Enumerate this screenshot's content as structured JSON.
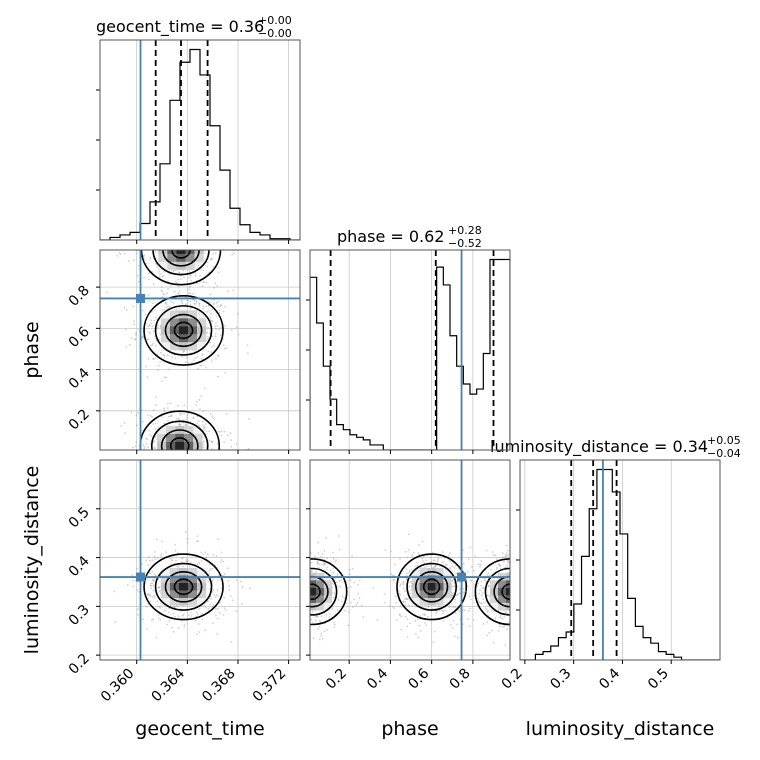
{
  "chart_data": {
    "type": "corner",
    "parameters": [
      "geocent_time",
      "phase",
      "luminosity_distance"
    ],
    "truths": {
      "geocent_time": 0.3603,
      "phase": 0.745,
      "luminosity_distance": 0.36
    },
    "colors": {
      "truth": "#4682b4",
      "hist": "#000000",
      "grid": "#c8c8c8",
      "points": "#9a9a9a"
    },
    "titles": [
      {
        "param": "geocent_time",
        "label": "geocent_time = 0.36",
        "plus": "+0.00",
        "minus": "−0.00"
      },
      {
        "param": "phase",
        "label": "phase = 0.62",
        "plus": "+0.28",
        "minus": "−0.52"
      },
      {
        "param": "luminosity_distance",
        "label": "luminosity_distance = 0.34",
        "plus": "+0.05",
        "minus": "−0.04"
      }
    ],
    "axis_labels": {
      "geocent_time": "geocent_time",
      "phase": "phase",
      "luminosity_distance": "luminosity_distance"
    },
    "ranges": {
      "geocent_time": [
        0.3571,
        0.3729
      ],
      "phase": [
        0.01,
        0.98
      ],
      "luminosity_distance": [
        0.19,
        0.6
      ]
    },
    "ticks": {
      "geocent_time": [
        0.36,
        0.364,
        0.368,
        0.372
      ],
      "phase": [
        0.2,
        0.4,
        0.6,
        0.8
      ],
      "luminosity_distance": [
        0.2,
        0.3,
        0.4,
        0.5
      ]
    },
    "tick_labels": {
      "geocent_time": [
        "0.360",
        "0.364",
        "0.368",
        "0.372"
      ],
      "phase": [
        "0.2",
        "0.4",
        "0.6",
        "0.8"
      ],
      "luminosity_distance": [
        "0.2",
        "0.3",
        "0.4",
        "0.5"
      ]
    },
    "quantiles": {
      "geocent_time": [
        0.3615,
        0.3635,
        0.3656
      ],
      "phase": [
        0.11,
        0.62,
        0.9
      ],
      "luminosity_distance": [
        0.295,
        0.34,
        0.388
      ]
    },
    "histograms": {
      "geocent_time": {
        "edges_range": [
          0.3571,
          0.3729
        ],
        "counts": [
          0,
          2,
          4,
          6,
          13,
          30,
          60,
          110,
          140,
          150,
          130,
          90,
          55,
          25,
          12,
          6,
          4,
          1,
          1,
          0
        ]
      },
      "phase": {
        "edges_range": [
          0.01,
          0.98
        ],
        "counts": [
          68,
          50,
          33,
          20,
          10,
          8,
          6,
          5,
          4,
          2,
          2,
          0,
          0,
          0,
          0,
          0,
          0,
          0,
          0,
          72,
          65,
          45,
          33,
          26,
          22,
          24,
          38,
          75,
          75,
          75
        ]
      },
      "luminosity_distance": {
        "edges_range": [
          0.19,
          0.6
        ],
        "counts": [
          0,
          0,
          2,
          3,
          5,
          8,
          10,
          20,
          37,
          54,
          68,
          68,
          60,
          45,
          22,
          12,
          8,
          6,
          3,
          2,
          1,
          0,
          0,
          0,
          0,
          0
        ]
      }
    },
    "density_modes": [
      {
        "x": "geocent_time",
        "y": "phase",
        "centers": [
          [
            0.3637,
            0.59
          ],
          [
            0.3634,
            0.03
          ],
          [
            0.3635,
            0.98
          ]
        ]
      },
      {
        "x": "geocent_time",
        "y": "luminosity_distance",
        "centers": [
          [
            0.3637,
            0.34
          ]
        ]
      },
      {
        "x": "phase",
        "y": "luminosity_distance",
        "centers": [
          [
            0.6,
            0.34
          ],
          [
            0.02,
            0.33
          ],
          [
            0.98,
            0.33
          ]
        ]
      }
    ]
  }
}
